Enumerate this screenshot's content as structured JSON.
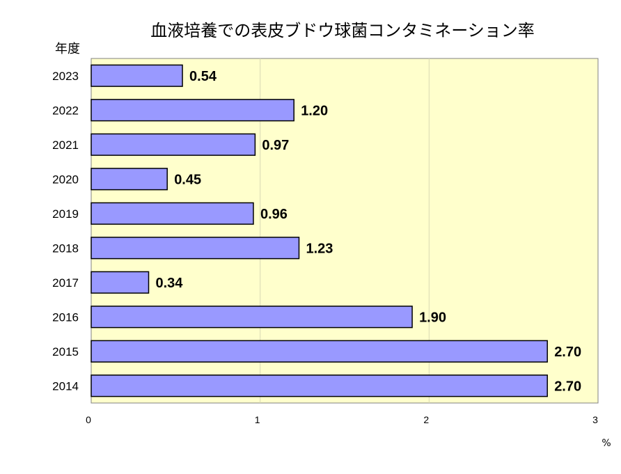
{
  "chart_data": {
    "type": "bar",
    "orientation": "horizontal",
    "title": "血液培養での表皮ブドウ球菌コンタミネーション率",
    "ylabel": "年度",
    "xlabel": "%",
    "categories": [
      "2023",
      "2022",
      "2021",
      "2020",
      "2019",
      "2018",
      "2017",
      "2016",
      "2015",
      "2014"
    ],
    "values": [
      0.54,
      1.2,
      0.97,
      0.45,
      0.96,
      1.23,
      0.34,
      1.9,
      2.7,
      2.7
    ],
    "value_labels": [
      "0.54",
      "1.20",
      "0.97",
      "0.45",
      "0.96",
      "1.23",
      "0.34",
      "1.90",
      "2.70",
      "2.70"
    ],
    "xlim": [
      0,
      3
    ],
    "xticks": [
      "0",
      "1",
      "2",
      "3"
    ],
    "grid": "vertical",
    "legend": "none"
  },
  "colors": {
    "plot_background": "#ffffcc",
    "bar_fill": "#9999ff",
    "bar_stroke": "#000000",
    "grid": "#d9d9b3"
  }
}
